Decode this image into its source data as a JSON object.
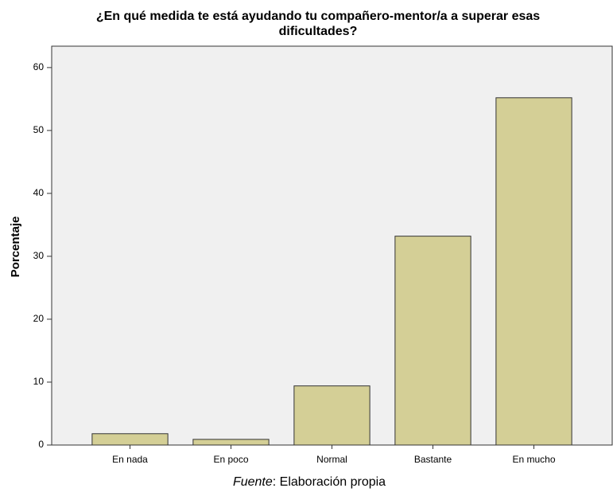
{
  "chart_data": {
    "type": "bar",
    "title": [
      "¿En qué medida te está ayudando tu compañero-mentor/a a superar esas",
      "dificultades?"
    ],
    "y_label": "Porcentaje",
    "categories": [
      "En nada",
      "En poco",
      "Normal",
      "Bastante",
      "En mucho"
    ],
    "values": [
      1.8,
      0.9,
      9.4,
      33.2,
      55.2
    ],
    "color": "#d4cf96",
    "ylim": [
      0,
      63.4
    ],
    "yticks": [
      0,
      10,
      20,
      30,
      40,
      50,
      60
    ],
    "grid": false,
    "source": {
      "emphasis": "Fuente",
      "text": ": Elaboración propia"
    }
  }
}
